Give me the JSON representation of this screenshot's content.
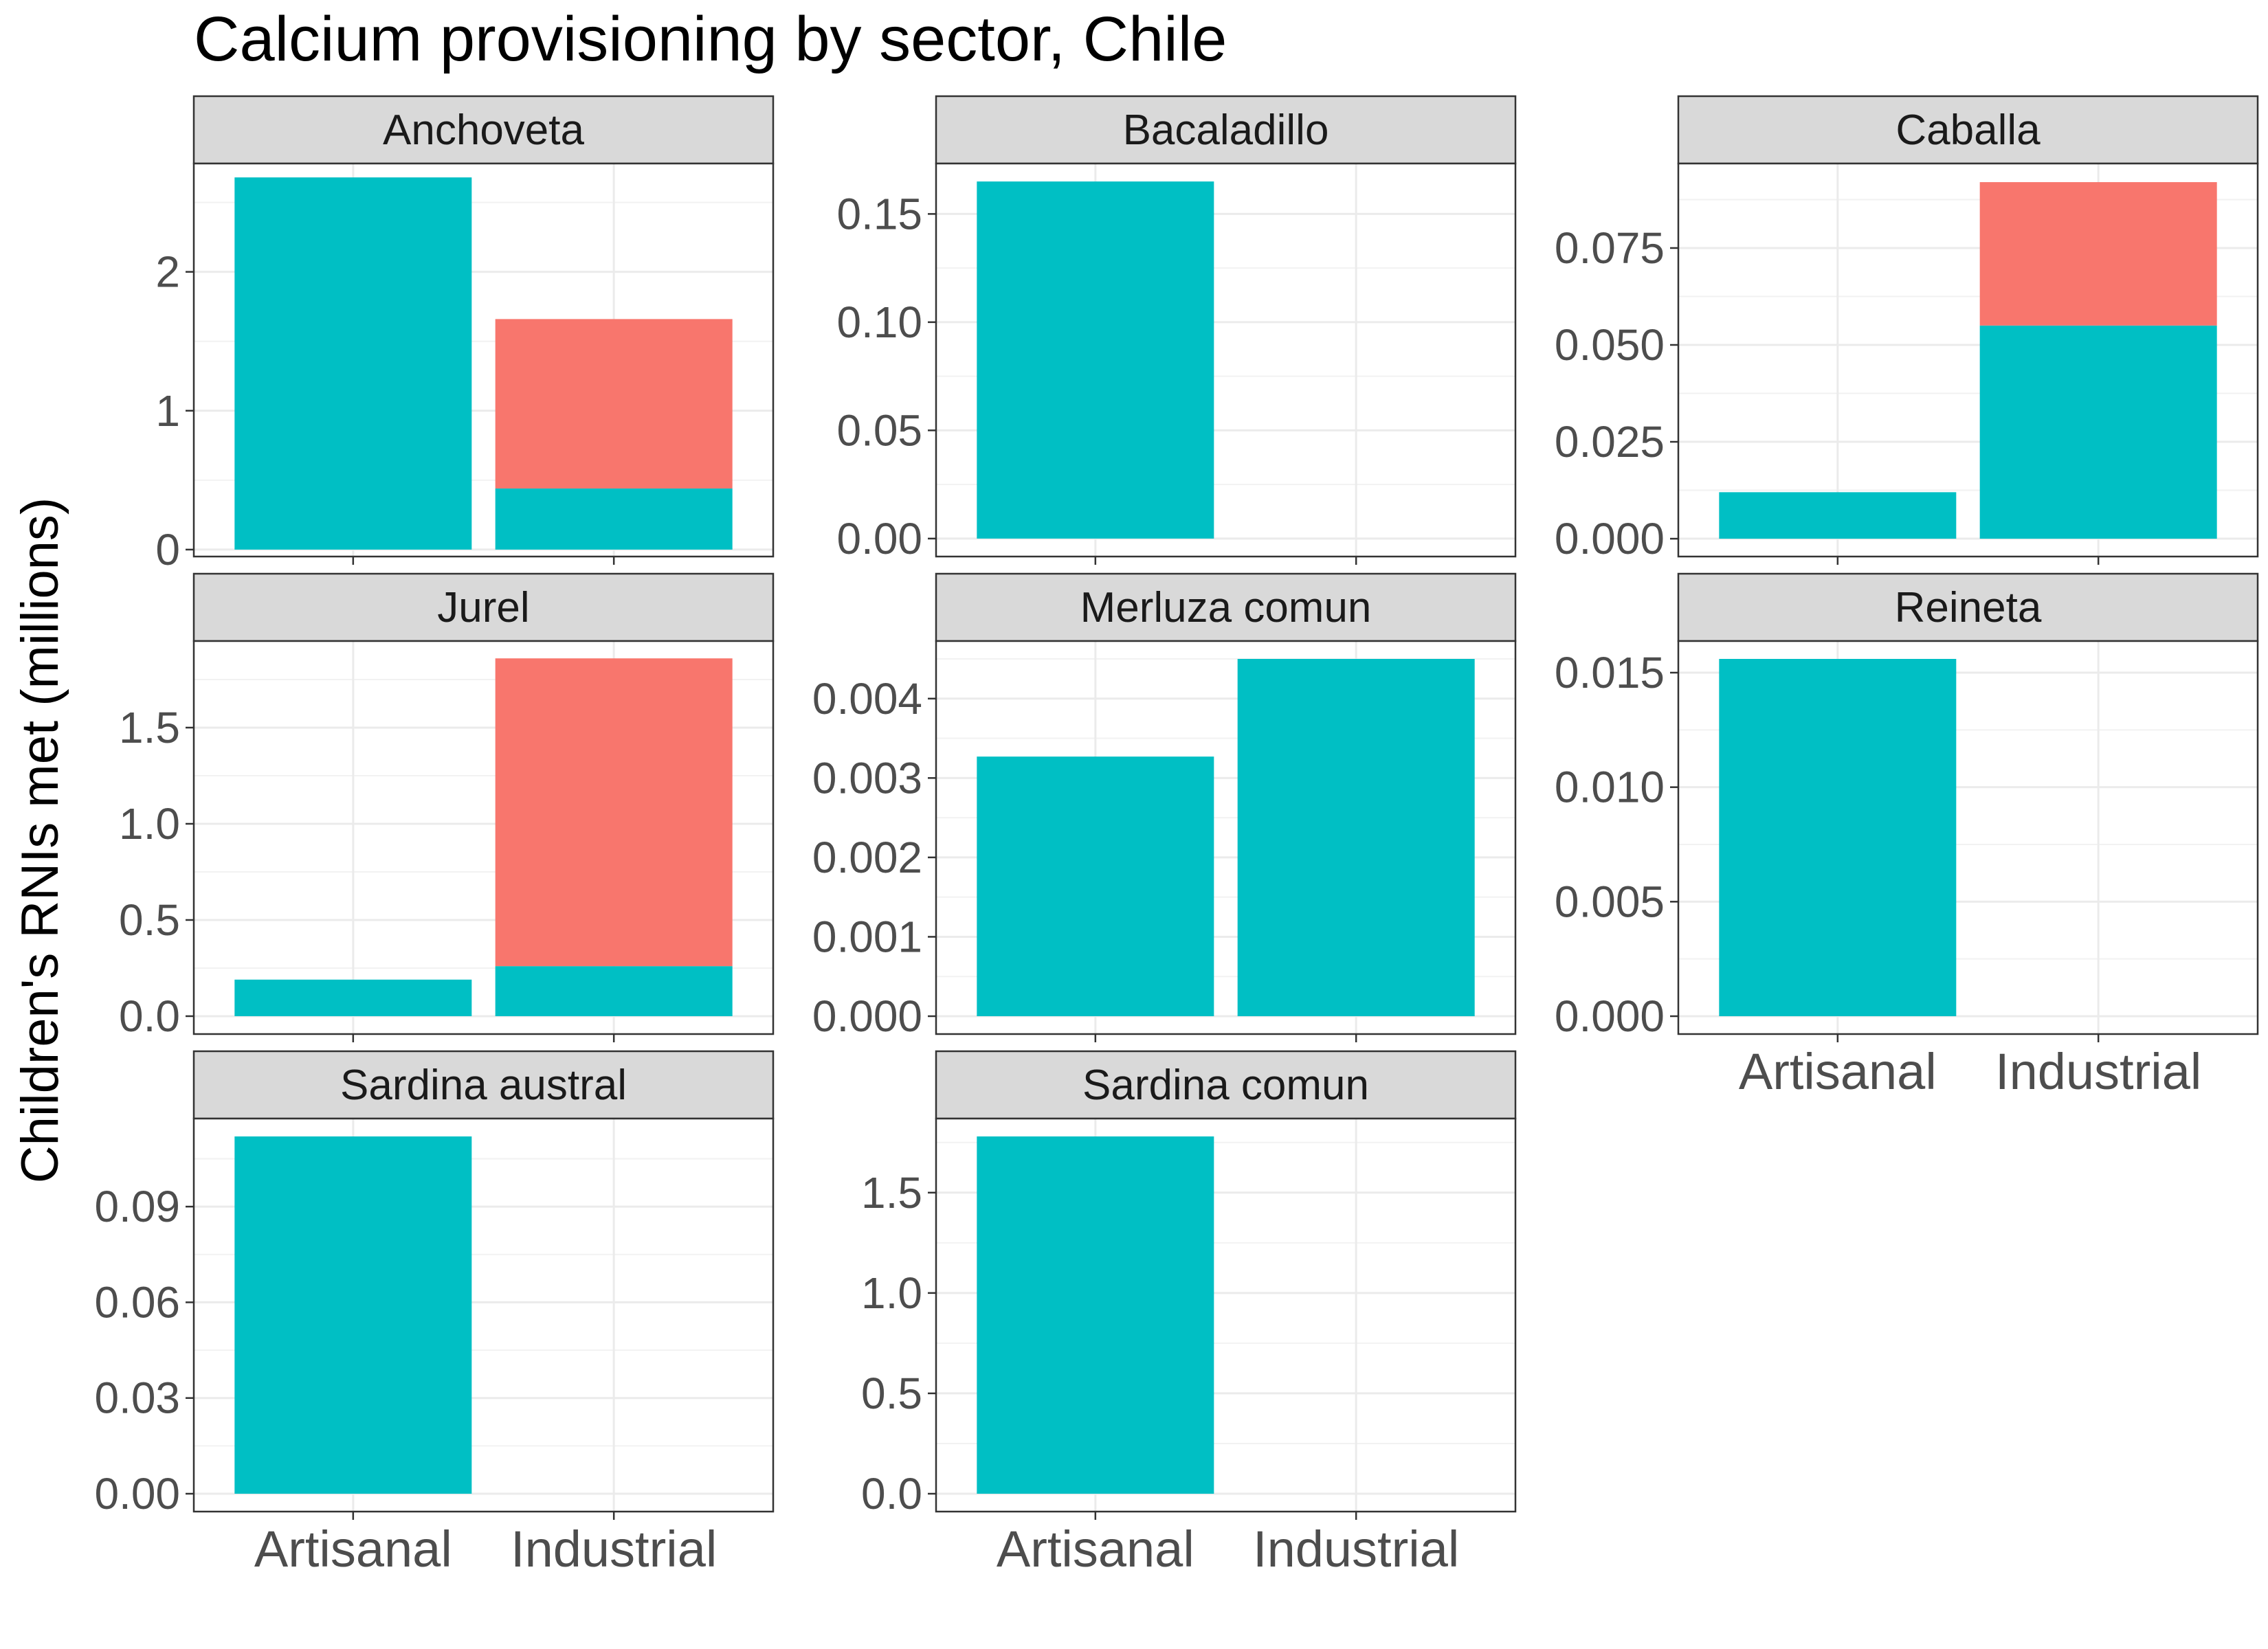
{
  "chart_data": {
    "type": "bar",
    "stacked": true,
    "title": "Calcium provisioning by sector, Chile",
    "ylabel": "Children's RNIs met (millions)",
    "xlabel": "",
    "categories": [
      "Artisanal",
      "Industrial"
    ],
    "colors": {
      "lower": "#00BFC4",
      "upper": "#F8766D"
    },
    "grid": true,
    "facets": [
      {
        "name": "Anchoveta",
        "ylim": [
          -0.05,
          2.78
        ],
        "yticks": [
          0,
          1,
          2
        ],
        "tick_labels": [
          "0",
          "1",
          "2"
        ],
        "minor_ticks": [
          0.5,
          1.5,
          2.5
        ],
        "bars": {
          "Artisanal": [
            2.68,
            0
          ],
          "Industrial": [
            0.44,
            1.22
          ]
        },
        "show_x_labels": false
      },
      {
        "name": "Bacaladillo",
        "ylim": [
          -0.0083,
          0.1733
        ],
        "yticks": [
          0,
          0.05,
          0.1,
          0.15
        ],
        "tick_labels": [
          "0.00",
          "0.05",
          "0.10",
          "0.15"
        ],
        "minor_ticks": [
          0.025,
          0.075,
          0.125
        ],
        "bars": {
          "Artisanal": [
            0.165,
            0
          ],
          "Industrial": [
            0,
            0
          ]
        },
        "show_x_labels": false
      },
      {
        "name": "Caballa",
        "ylim": [
          -0.0046,
          0.0968
        ],
        "yticks": [
          0,
          0.025,
          0.05,
          0.075
        ],
        "tick_labels": [
          "0.000",
          "0.025",
          "0.050",
          "0.075"
        ],
        "minor_ticks": [
          0.0125,
          0.0375,
          0.0625,
          0.0875
        ],
        "bars": {
          "Artisanal": [
            0.012,
            0
          ],
          "Industrial": [
            0.055,
            0.037
          ]
        },
        "show_x_labels": false
      },
      {
        "name": "Jurel",
        "ylim": [
          -0.093,
          1.95
        ],
        "yticks": [
          0,
          0.5,
          1,
          1.5
        ],
        "tick_labels": [
          "0.0",
          "0.5",
          "1.0",
          "1.5"
        ],
        "minor_ticks": [
          0.25,
          0.75,
          1.25,
          1.75
        ],
        "bars": {
          "Artisanal": [
            0.19,
            0
          ],
          "Industrial": [
            0.26,
            1.6
          ]
        },
        "show_x_labels": false
      },
      {
        "name": "Merluza comun",
        "ylim": [
          -0.000225,
          0.004725
        ],
        "yticks": [
          0,
          0.001,
          0.002,
          0.003,
          0.004
        ],
        "tick_labels": [
          "0.000",
          "0.001",
          "0.002",
          "0.003",
          "0.004"
        ],
        "minor_ticks": [
          0.0005,
          0.0015,
          0.0025,
          0.0035,
          0.0045
        ],
        "bars": {
          "Artisanal": [
            0.00327,
            0
          ],
          "Industrial": [
            0.0045,
            0
          ]
        },
        "show_x_labels": false
      },
      {
        "name": "Reineta",
        "ylim": [
          -0.00078,
          0.01638
        ],
        "yticks": [
          0,
          0.005,
          0.01,
          0.015
        ],
        "tick_labels": [
          "0.000",
          "0.005",
          "0.010",
          "0.015"
        ],
        "minor_ticks": [
          0.0025,
          0.0075,
          0.0125
        ],
        "bars": {
          "Artisanal": [
            0.0156,
            0
          ],
          "Industrial": [
            0,
            0
          ]
        },
        "show_x_labels": true
      },
      {
        "name": "Sardina austral",
        "ylim": [
          -0.0056,
          0.1176
        ],
        "yticks": [
          0,
          0.03,
          0.06,
          0.09
        ],
        "tick_labels": [
          "0.00",
          "0.03",
          "0.06",
          "0.09"
        ],
        "minor_ticks": [
          0.015,
          0.045,
          0.075,
          0.105
        ],
        "bars": {
          "Artisanal": [
            0.112,
            0
          ],
          "Industrial": [
            0,
            0
          ]
        },
        "show_x_labels": true
      },
      {
        "name": "Sardina comun",
        "ylim": [
          -0.089,
          1.869
        ],
        "yticks": [
          0,
          0.5,
          1,
          1.5
        ],
        "tick_labels": [
          "0.0",
          "0.5",
          "1.0",
          "1.5"
        ],
        "minor_ticks": [
          0.25,
          0.75,
          1.25,
          1.75
        ],
        "bars": {
          "Artisanal": [
            1.78,
            0
          ],
          "Industrial": [
            0,
            0
          ]
        },
        "show_x_labels": true
      }
    ]
  }
}
